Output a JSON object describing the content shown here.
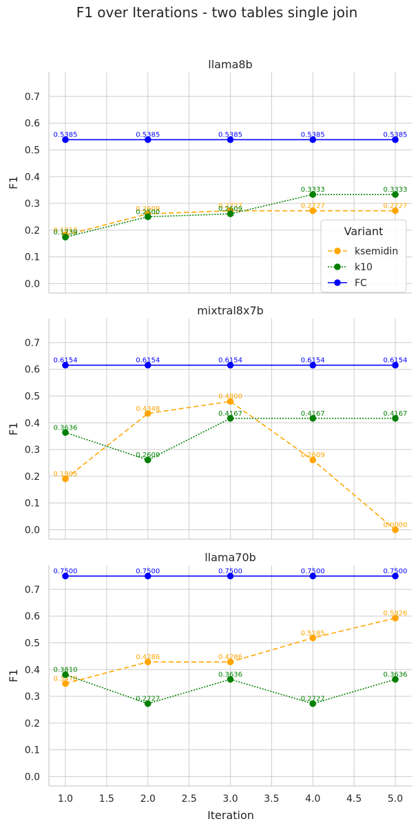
{
  "figure": {
    "title": "F1 over Iterations - two tables single join",
    "xlabel": "Iteration",
    "ylabel": "F1"
  },
  "legend": {
    "title": "Variant",
    "placement": "right-center of first panel",
    "entries": [
      {
        "name": "ksemidin",
        "color": "#ffa500",
        "linestyle": "dashed"
      },
      {
        "name": "k10",
        "color": "#008000",
        "linestyle": "dotted"
      },
      {
        "name": "FC",
        "color": "#0000ff",
        "linestyle": "solid"
      }
    ]
  },
  "chart_data": [
    {
      "type": "line",
      "title": "llama8b",
      "xlabel": "",
      "ylabel": "F1",
      "x": [
        1.0,
        2.0,
        3.0,
        4.0,
        5.0
      ],
      "xticks": [
        "1.0",
        "1.5",
        "2.0",
        "2.5",
        "3.0",
        "3.5",
        "4.0",
        "4.5",
        "5.0"
      ],
      "yticks": [
        "0.0",
        "0.1",
        "0.2",
        "0.3",
        "0.4",
        "0.5",
        "0.6",
        "0.7"
      ],
      "ylim": [
        -0.035,
        0.79
      ],
      "xlim": [
        0.8,
        5.2
      ],
      "grid": true,
      "series": [
        {
          "name": "ksemidin",
          "color": "#ffa500",
          "values": [
            0.1818,
            0.2609,
            0.2727,
            0.2727,
            0.2727
          ],
          "labels": [
            "0.1818",
            "0.2609",
            "0.2727",
            "0.2727",
            "0.2727"
          ]
        },
        {
          "name": "k10",
          "color": "#008000",
          "values": [
            0.1739,
            0.25,
            0.2609,
            0.3333,
            0.3333
          ],
          "labels": [
            "0.1739",
            "0.2500",
            "0.2609",
            "0.3333",
            "0.3333"
          ]
        },
        {
          "name": "FC",
          "color": "#0000ff",
          "values": [
            0.5385,
            0.5385,
            0.5385,
            0.5385,
            0.5385
          ],
          "labels": [
            "0.5385",
            "0.5385",
            "0.5385",
            "0.5385",
            "0.5385"
          ]
        }
      ]
    },
    {
      "type": "line",
      "title": "mixtral8x7b",
      "xlabel": "",
      "ylabel": "F1",
      "x": [
        1.0,
        2.0,
        3.0,
        4.0,
        5.0
      ],
      "xticks": [
        "1.0",
        "1.5",
        "2.0",
        "2.5",
        "3.0",
        "3.5",
        "4.0",
        "4.5",
        "5.0"
      ],
      "yticks": [
        "0.0",
        "0.1",
        "0.2",
        "0.3",
        "0.4",
        "0.5",
        "0.6",
        "0.7"
      ],
      "ylim": [
        -0.035,
        0.79
      ],
      "xlim": [
        0.8,
        5.2
      ],
      "grid": true,
      "series": [
        {
          "name": "ksemidin",
          "color": "#ffa500",
          "values": [
            0.1905,
            0.4348,
            0.48,
            0.2609,
            0.0
          ],
          "labels": [
            "0.1905",
            "0.4348",
            "0.4800",
            "0.2609",
            "0.0000"
          ]
        },
        {
          "name": "k10",
          "color": "#008000",
          "values": [
            0.3636,
            0.2609,
            0.4167,
            0.4167,
            0.4167
          ],
          "labels": [
            "0.3636",
            "0.2609",
            "0.4167",
            "0.4167",
            "0.4167"
          ]
        },
        {
          "name": "FC",
          "color": "#0000ff",
          "values": [
            0.6154,
            0.6154,
            0.6154,
            0.6154,
            0.6154
          ],
          "labels": [
            "0.6154",
            "0.6154",
            "0.6154",
            "0.6154",
            "0.6154"
          ]
        }
      ]
    },
    {
      "type": "line",
      "title": "llama70b",
      "xlabel": "Iteration",
      "ylabel": "F1",
      "x": [
        1.0,
        2.0,
        3.0,
        4.0,
        5.0
      ],
      "xticks": [
        "1.0",
        "1.5",
        "2.0",
        "2.5",
        "3.0",
        "3.5",
        "4.0",
        "4.5",
        "5.0"
      ],
      "yticks": [
        "0.0",
        "0.1",
        "0.2",
        "0.3",
        "0.4",
        "0.5",
        "0.6",
        "0.7"
      ],
      "ylim": [
        -0.035,
        0.79
      ],
      "xlim": [
        0.8,
        5.2
      ],
      "grid": true,
      "series": [
        {
          "name": "ksemidin",
          "color": "#ffa500",
          "values": [
            0.3478,
            0.4286,
            0.4286,
            0.5185,
            0.5926
          ],
          "labels": [
            "0.3478",
            "0.4286",
            "0.4286",
            "0.5185",
            "0.5926"
          ]
        },
        {
          "name": "k10",
          "color": "#008000",
          "values": [
            0.381,
            0.2727,
            0.3636,
            0.2727,
            0.3636
          ],
          "labels": [
            "0.3810",
            "0.2727",
            "0.3636",
            "0.2727",
            "0.3636"
          ]
        },
        {
          "name": "FC",
          "color": "#0000ff",
          "values": [
            0.75,
            0.75,
            0.75,
            0.75,
            0.75
          ],
          "labels": [
            "0.7500",
            "0.7500",
            "0.7500",
            "0.7500",
            "0.7500"
          ]
        }
      ]
    }
  ]
}
